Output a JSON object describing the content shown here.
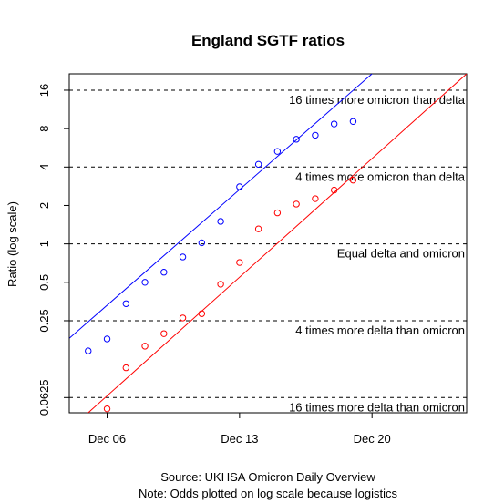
{
  "chart_data": {
    "type": "scatter",
    "title": "England SGTF ratios",
    "xlabel": "",
    "ylabel": "Ratio (log scale)",
    "y_scale": "log2",
    "xlim": [
      "2021-12-04",
      "2021-12-25"
    ],
    "ylim": [
      0.0475,
      21.5
    ],
    "x_ticks": [
      {
        "date": "2021-12-06",
        "label": "Dec 06"
      },
      {
        "date": "2021-12-13",
        "label": "Dec 13"
      },
      {
        "date": "2021-12-20",
        "label": "Dec 20"
      }
    ],
    "y_ticks": [
      {
        "value": 0.0625,
        "label": "0.0625"
      },
      {
        "value": 0.25,
        "label": "0.25"
      },
      {
        "value": 0.5,
        "label": "0.5"
      },
      {
        "value": 1,
        "label": "1"
      },
      {
        "value": 2,
        "label": "2"
      },
      {
        "value": 4,
        "label": "4"
      },
      {
        "value": 8,
        "label": "8"
      },
      {
        "value": 16,
        "label": "16"
      }
    ],
    "reference_lines": [
      {
        "value": 16,
        "label": "16 times more omicron than delta"
      },
      {
        "value": 4,
        "label": "4 times more omicron than delta"
      },
      {
        "value": 1,
        "label": "Equal delta and omicron"
      },
      {
        "value": 0.25,
        "label": "4 times more delta than omicron"
      },
      {
        "value": 0.0625,
        "label": "16 times more delta than omicron"
      }
    ],
    "series": [
      {
        "color": "#0000ff",
        "points": [
          {
            "x": "2021-12-05",
            "y": 0.145
          },
          {
            "x": "2021-12-06",
            "y": 0.18
          },
          {
            "x": "2021-12-07",
            "y": 0.34
          },
          {
            "x": "2021-12-08",
            "y": 0.5
          },
          {
            "x": "2021-12-09",
            "y": 0.6
          },
          {
            "x": "2021-12-10",
            "y": 0.79
          },
          {
            "x": "2021-12-11",
            "y": 1.02
          },
          {
            "x": "2021-12-12",
            "y": 1.5
          },
          {
            "x": "2021-12-13",
            "y": 2.8
          },
          {
            "x": "2021-12-14",
            "y": 4.2
          },
          {
            "x": "2021-12-15",
            "y": 5.3
          },
          {
            "x": "2021-12-16",
            "y": 6.6
          },
          {
            "x": "2021-12-17",
            "y": 7.1
          },
          {
            "x": "2021-12-18",
            "y": 8.7
          },
          {
            "x": "2021-12-19",
            "y": 9.1
          }
        ],
        "fit": [
          {
            "x": "2021-12-04",
            "y": 0.182
          },
          {
            "x": "2021-12-20",
            "y": 21.5
          }
        ]
      },
      {
        "color": "#ff0000",
        "points": [
          {
            "x": "2021-12-06",
            "y": 0.051
          },
          {
            "x": "2021-12-07",
            "y": 0.107
          },
          {
            "x": "2021-12-08",
            "y": 0.158
          },
          {
            "x": "2021-12-09",
            "y": 0.198
          },
          {
            "x": "2021-12-10",
            "y": 0.263
          },
          {
            "x": "2021-12-11",
            "y": 0.284
          },
          {
            "x": "2021-12-12",
            "y": 0.483
          },
          {
            "x": "2021-12-13",
            "y": 0.715
          },
          {
            "x": "2021-12-14",
            "y": 1.31
          },
          {
            "x": "2021-12-15",
            "y": 1.75
          },
          {
            "x": "2021-12-16",
            "y": 2.05
          },
          {
            "x": "2021-12-17",
            "y": 2.26
          },
          {
            "x": "2021-12-18",
            "y": 2.64
          },
          {
            "x": "2021-12-19",
            "y": 3.16
          }
        ],
        "fit": [
          {
            "x": "2021-12-05",
            "y": 0.0475
          },
          {
            "x": "2021-12-25",
            "y": 21.5
          }
        ]
      }
    ],
    "grid": false,
    "legend": "none",
    "captions": [
      "Source: UKHSA Omicron Daily Overview",
      "Note: Odds plotted on log scale because logistics"
    ]
  }
}
